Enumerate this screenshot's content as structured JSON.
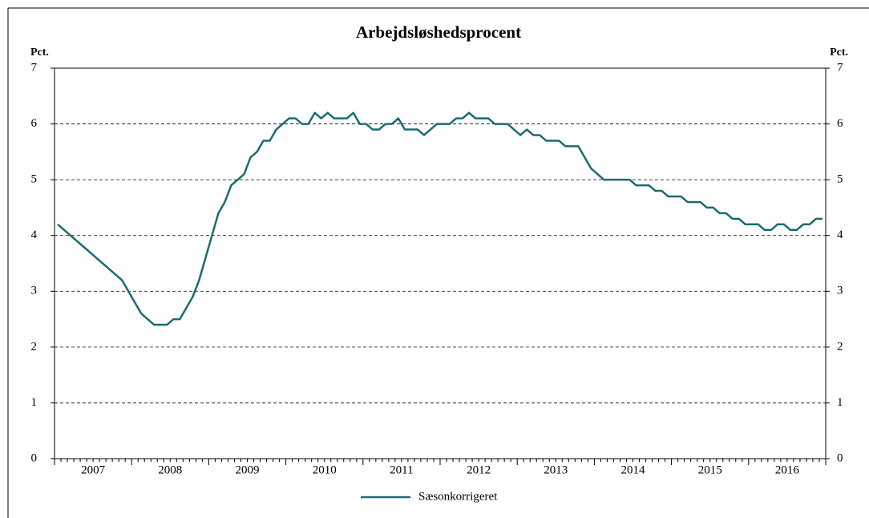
{
  "chart_data": {
    "type": "line",
    "title": "Arbejdsløshedsprocent",
    "y_label": "Pct.",
    "y2_label": "Pct.",
    "categories": [
      "2007",
      null,
      null,
      null,
      null,
      null,
      null,
      null,
      null,
      null,
      null,
      null,
      "2008",
      null,
      null,
      null,
      null,
      null,
      null,
      null,
      null,
      null,
      null,
      null,
      "2009",
      null,
      null,
      null,
      null,
      null,
      null,
      null,
      null,
      null,
      null,
      null,
      "2010",
      null,
      null,
      null,
      null,
      null,
      null,
      null,
      null,
      null,
      null,
      null,
      "2011",
      null,
      null,
      null,
      null,
      null,
      null,
      null,
      null,
      null,
      null,
      null,
      "2012",
      null,
      null,
      null,
      null,
      null,
      null,
      null,
      null,
      null,
      null,
      null,
      "2013",
      null,
      null,
      null,
      null,
      null,
      null,
      null,
      null,
      null,
      null,
      null,
      "2014",
      null,
      null,
      null,
      null,
      null,
      null,
      null,
      null,
      null,
      null,
      null,
      "2015",
      null,
      null,
      null,
      null,
      null,
      null,
      null,
      null,
      null,
      null,
      null,
      "2016",
      null,
      null,
      null,
      null,
      null,
      null,
      null,
      null,
      null,
      null,
      null
    ],
    "series": [
      {
        "name": "Sæsonkorrigeret",
        "color": "#1b6b72",
        "values": [
          4.2,
          4.1,
          4.0,
          3.9,
          3.8,
          3.7,
          3.6,
          3.5,
          3.4,
          3.3,
          3.2,
          3.0,
          2.8,
          2.6,
          2.5,
          2.4,
          2.4,
          2.4,
          2.5,
          2.5,
          2.7,
          2.9,
          3.2,
          3.6,
          4.0,
          4.4,
          4.6,
          4.9,
          5.0,
          5.1,
          5.4,
          5.5,
          5.7,
          5.7,
          5.9,
          6.0,
          6.1,
          6.1,
          6.0,
          6.0,
          6.2,
          6.1,
          6.2,
          6.1,
          6.1,
          6.1,
          6.2,
          6.0,
          6.0,
          5.9,
          5.9,
          6.0,
          6.0,
          6.1,
          5.9,
          5.9,
          5.9,
          5.8,
          5.9,
          6.0,
          6.0,
          6.0,
          6.1,
          6.1,
          6.2,
          6.1,
          6.1,
          6.1,
          6.0,
          6.0,
          6.0,
          5.9,
          5.8,
          5.9,
          5.8,
          5.8,
          5.7,
          5.7,
          5.7,
          5.6,
          5.6,
          5.6,
          5.4,
          5.2,
          5.1,
          5.0,
          5.0,
          5.0,
          5.0,
          5.0,
          4.9,
          4.9,
          4.9,
          4.8,
          4.8,
          4.7,
          4.7,
          4.7,
          4.6,
          4.6,
          4.6,
          4.5,
          4.5,
          4.4,
          4.4,
          4.3,
          4.3,
          4.2,
          4.2,
          4.2,
          4.1,
          4.1,
          4.2,
          4.2,
          4.1,
          4.1,
          4.2,
          4.2,
          4.3,
          4.3
        ]
      }
    ],
    "ylim": [
      0,
      7
    ],
    "yticks": [
      0,
      1,
      2,
      3,
      4,
      5,
      6,
      7
    ],
    "y2lim": [
      0,
      7
    ],
    "y2ticks": [
      0,
      1,
      2,
      3,
      4,
      5,
      6,
      7
    ],
    "grid": true,
    "legend": "bottom"
  }
}
